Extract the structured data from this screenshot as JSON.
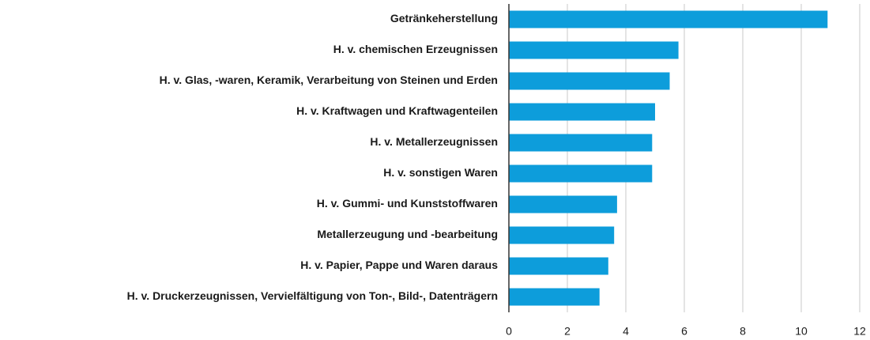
{
  "chart_data": {
    "type": "bar",
    "orientation": "horizontal",
    "categories": [
      "Getränkeherstellung",
      "H. v. chemischen Erzeugnissen",
      "H. v. Glas, -waren, Keramik, Verarbeitung von Steinen und Erden",
      "H. v. Kraftwagen und Kraftwagenteilen",
      "H. v. Metallerzeugnissen",
      "H. v. sonstigen Waren",
      "H. v. Gummi- und Kunststoffwaren",
      "Metallerzeugung und -bearbeitung",
      "H. v. Papier, Pappe und Waren daraus",
      "H. v. Druckerzeugnissen, Vervielfältigung von Ton-, Bild-, Datenträgern"
    ],
    "values": [
      10.9,
      5.8,
      5.5,
      5.0,
      4.9,
      4.9,
      3.7,
      3.6,
      3.4,
      3.1
    ],
    "color": "#0d9ddb",
    "xlim": [
      0,
      12
    ],
    "xticks": [
      0,
      2,
      4,
      6,
      8,
      10,
      12
    ],
    "grid": true
  }
}
